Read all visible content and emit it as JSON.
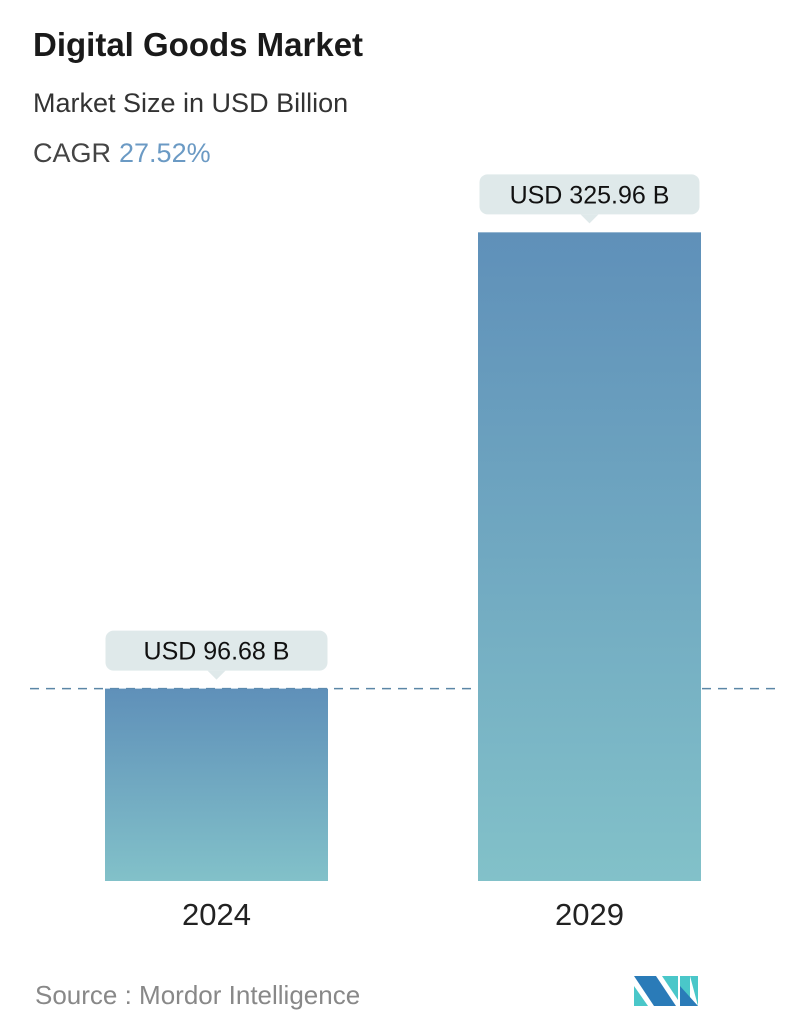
{
  "header": {
    "title": "Digital Goods Market",
    "subtitle": "Market Size in USD Billion",
    "cagr_label": "CAGR",
    "cagr_value": "27.52%"
  },
  "chart_data": {
    "type": "bar",
    "categories": [
      "2024",
      "2029"
    ],
    "values": [
      96.68,
      325.96
    ],
    "data_labels": [
      "USD 96.68 B",
      "USD 325.96 B"
    ],
    "ylabel": "Market Size in USD Billion",
    "reference_line": {
      "value": 96.68,
      "style": "dashed"
    },
    "colors": {
      "bar_top": "#5f90b9",
      "bar_bottom": "#82c1c9",
      "label_bg": "#dfe9ea",
      "reference_line": "#5b86a6"
    }
  },
  "footer": {
    "source": "Source :  Mordor Intelligence"
  },
  "logo": {
    "name": "mordor-intelligence-logo",
    "colors": [
      "#2a7bb8",
      "#4ac7c9"
    ]
  }
}
